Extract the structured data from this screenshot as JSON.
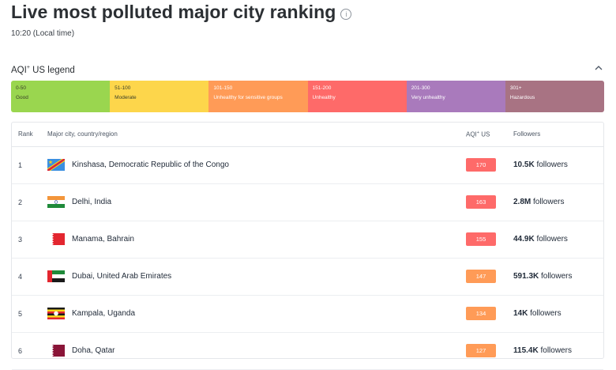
{
  "header": {
    "title": "Live most polluted major city ranking",
    "info_icon": "info-icon",
    "local_time": "10:20 (Local time)"
  },
  "legend": {
    "title_prefix": "AQI",
    "title_sup": "+",
    "title_suffix": " US legend",
    "collapse_icon": "chevron-up-icon",
    "segments": [
      {
        "range": "0-50",
        "label": "Good",
        "color": "#9ad64f"
      },
      {
        "range": "51-100",
        "label": "Moderate",
        "color": "#fdd64b"
      },
      {
        "range": "101-150",
        "label": "Unhealthy for sensitive groups",
        "color": "#ff9b57"
      },
      {
        "range": "151-200",
        "label": "Unhealthy",
        "color": "#fe6a69"
      },
      {
        "range": "201-300",
        "label": "Very unhealthy",
        "color": "#a97abc"
      },
      {
        "range": "301+",
        "label": "Hazardous",
        "color": "#a87383"
      }
    ]
  },
  "table": {
    "headers": {
      "rank": "Rank",
      "city": "Major city, country/region",
      "aqi_prefix": "AQI",
      "aqi_sup": "+",
      "aqi_suffix": " US",
      "followers": "Followers"
    },
    "rows": [
      {
        "rank": "1",
        "city": "Kinshasa, Democratic Republic of the Congo",
        "flag": "drc-flag-icon",
        "aqi": "170",
        "aqi_color": "#fe6a69",
        "followers_count": "10.5K",
        "followers_label": " followers"
      },
      {
        "rank": "2",
        "city": "Delhi, India",
        "flag": "india-flag-icon",
        "aqi": "163",
        "aqi_color": "#fe6a69",
        "followers_count": "2.8M",
        "followers_label": " followers"
      },
      {
        "rank": "3",
        "city": "Manama, Bahrain",
        "flag": "bahrain-flag-icon",
        "aqi": "155",
        "aqi_color": "#fe6a69",
        "followers_count": "44.9K",
        "followers_label": " followers"
      },
      {
        "rank": "4",
        "city": "Dubai, United Arab Emirates",
        "flag": "uae-flag-icon",
        "aqi": "147",
        "aqi_color": "#ff9b57",
        "followers_count": "591.3K",
        "followers_label": " followers"
      },
      {
        "rank": "5",
        "city": "Kampala, Uganda",
        "flag": "uganda-flag-icon",
        "aqi": "134",
        "aqi_color": "#ff9b57",
        "followers_count": "14K",
        "followers_label": " followers"
      },
      {
        "rank": "6",
        "city": "Doha, Qatar",
        "flag": "qatar-flag-icon",
        "aqi": "127",
        "aqi_color": "#ff9b57",
        "followers_count": "115.4K",
        "followers_label": " followers"
      }
    ]
  }
}
